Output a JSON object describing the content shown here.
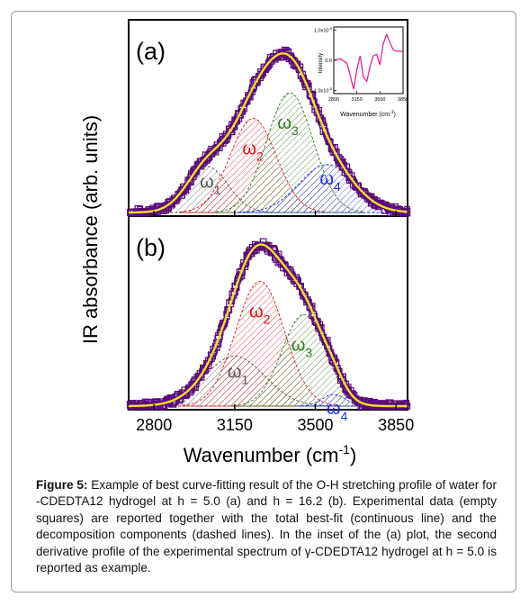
{
  "figure": {
    "caption_label": "Figure 5:",
    "caption_text": "Example of best curve-fitting result of the O-H stretching profile of water for -CDEDTA12 hydrogel at h = 5.0 (a) and h = 16.2 (b). Experimental data (empty squares) are reported together with the total best-fit (continuous line) and the decomposition components (dashed lines). In the inset of the (a) plot, the second derivative profile of the experimental spectrum of γ-CDEDTA12 hydrogel at h = 5.0 is reported as example."
  },
  "chart_data": {
    "type": "line",
    "xlabel": "Wavenumber (cm",
    "xlabel_sup": "-1",
    "xlabel_close": ")",
    "ylabel": "IR absorbance (arb. units)",
    "xlim": [
      2690,
      3900
    ],
    "x_ticks": [
      "2800",
      "3150",
      "3500",
      "3850"
    ],
    "x_tick_values": [
      2800,
      3150,
      3500,
      3850
    ],
    "colors": {
      "experimental": "#5a0a7a",
      "total_fit": "#f2e022",
      "omega1": "#555555",
      "omega2": "#e0141e",
      "omega3": "#2e7d1e",
      "omega4": "#1f2fd8"
    },
    "panels": [
      {
        "label": "(a)",
        "components": [
          {
            "name": "ω1",
            "label_main": "ω",
            "label_sub": "1",
            "center": 3030,
            "width": 90,
            "amplitude": 0.27
          },
          {
            "name": "ω2",
            "label_main": "ω",
            "label_sub": "2",
            "center": 3230,
            "width": 100,
            "amplitude": 0.55
          },
          {
            "name": "ω3",
            "label_main": "ω",
            "label_sub": "3",
            "center": 3390,
            "width": 100,
            "amplitude": 0.7
          },
          {
            "name": "ω4",
            "label_main": "ω",
            "label_sub": "4",
            "center": 3550,
            "width": 120,
            "amplitude": 0.28
          }
        ],
        "experimental_peak": 3290,
        "experimental_width": 230,
        "experimental_max": 0.93
      },
      {
        "label": "(b)",
        "components": [
          {
            "name": "ω1",
            "label_main": "ω",
            "label_sub": "1",
            "center": 3150,
            "width": 130,
            "amplitude": 0.3
          },
          {
            "name": "ω2",
            "label_main": "ω",
            "label_sub": "2",
            "center": 3260,
            "width": 105,
            "amplitude": 0.75
          },
          {
            "name": "ω3",
            "label_main": "ω",
            "label_sub": "3",
            "center": 3450,
            "width": 95,
            "amplitude": 0.55
          },
          {
            "name": "ω4",
            "label_main": "ω",
            "label_sub": "4",
            "center": 3580,
            "width": 50,
            "amplitude": 0.07
          }
        ],
        "experimental_peak": 3280,
        "experimental_width": 210,
        "experimental_max": 0.97
      }
    ],
    "inset": {
      "type": "line",
      "xlabel": "Wavenumber (cm",
      "xlabel_sup": "-1",
      "xlabel_close": ")",
      "ylabel": "Intensity",
      "x_ticks": [
        "2800",
        "3150",
        "3500",
        "3850"
      ],
      "y_ticks": [
        "1.0x10",
        "0.0",
        "-1.0x10"
      ],
      "y_tick_sup": [
        "-5",
        "",
        "-5"
      ],
      "xlim": [
        2800,
        3850
      ],
      "ylim": [
        -1.1e-05,
        1.1e-05
      ],
      "color": "#e0148c",
      "x": [
        2800,
        2900,
        3000,
        3050,
        3100,
        3150,
        3200,
        3250,
        3300,
        3350,
        3400,
        3450,
        3500,
        3550,
        3600,
        3650,
        3700,
        3750,
        3800,
        3850
      ],
      "y": [
        0.0,
        5e-07,
        -1e-06,
        -5e-06,
        -9.5e-06,
        -3e-06,
        1.5e-06,
        -5.5e-06,
        -7e-06,
        -2e-06,
        1.5e-06,
        2e-06,
        -1.5e-06,
        5.5e-06,
        8.5e-06,
        6e-06,
        3.5e-06,
        3e-06,
        3e-06,
        3e-06
      ]
    }
  }
}
